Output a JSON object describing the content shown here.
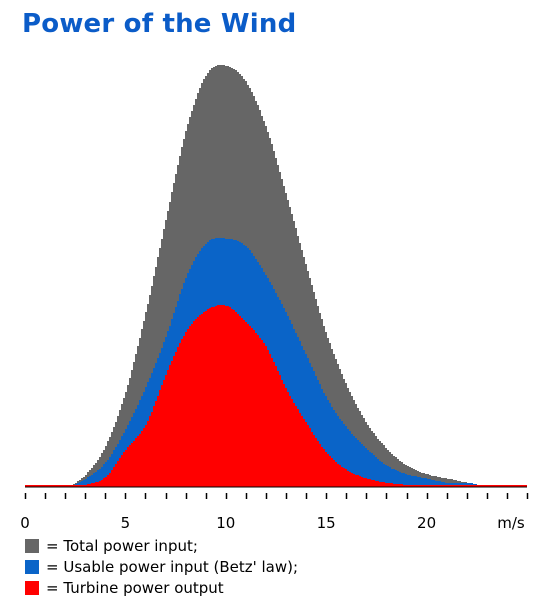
{
  "page": {
    "title": "Power of the Wind",
    "title_color": "#0b5cc8"
  },
  "chart_data": {
    "type": "area",
    "title": "Power of the Wind",
    "xlabel": "m/s",
    "ylabel": "",
    "x_ticks": [
      "0",
      "5",
      "10",
      "15",
      "20"
    ],
    "x_unit_label": "m/s",
    "xlim": [
      0,
      25
    ],
    "ylim": [
      0,
      1
    ],
    "grid": false,
    "legend_position": "bottom-left",
    "x": [
      0,
      1,
      2,
      3,
      4,
      5,
      6,
      7,
      8,
      9,
      10,
      11,
      12,
      13,
      14,
      15,
      16,
      17,
      18,
      19,
      20,
      21,
      22,
      23,
      24,
      25
    ],
    "series": [
      {
        "name": "Total power input;",
        "color": "#666666",
        "values": [
          0.0,
          0.0,
          0.0,
          0.03,
          0.1,
          0.23,
          0.42,
          0.64,
          0.85,
          0.98,
          1.0,
          0.96,
          0.85,
          0.69,
          0.52,
          0.36,
          0.24,
          0.15,
          0.09,
          0.05,
          0.03,
          0.02,
          0.01,
          0.0,
          0.0,
          0.0
        ]
      },
      {
        "name": "Usable power input (Betz' law);",
        "color": "#0a64c8",
        "values": [
          0.0,
          0.0,
          0.0,
          0.02,
          0.06,
          0.14,
          0.24,
          0.36,
          0.5,
          0.58,
          0.59,
          0.57,
          0.5,
          0.41,
          0.31,
          0.21,
          0.14,
          0.09,
          0.05,
          0.03,
          0.02,
          0.01,
          0.01,
          0.0,
          0.0,
          0.0
        ]
      },
      {
        "name": "Turbine power output",
        "color": "#ff0000",
        "values": [
          0.0,
          0.0,
          0.0,
          0.005,
          0.025,
          0.09,
          0.15,
          0.27,
          0.37,
          0.42,
          0.43,
          0.39,
          0.33,
          0.23,
          0.15,
          0.08,
          0.04,
          0.02,
          0.01,
          0.005,
          0.0,
          0.0,
          0.0,
          0.0,
          0.0,
          0.0
        ]
      }
    ]
  },
  "legend": {
    "items": [
      {
        "label": "= Total power input;",
        "color": "#666666",
        "icon": "square-swatch"
      },
      {
        "label": "= Usable power input (Betz' law);",
        "color": "#0a64c8",
        "icon": "square-swatch"
      },
      {
        "label": "= Turbine power output",
        "color": "#ff0000",
        "icon": "square-swatch"
      }
    ]
  }
}
